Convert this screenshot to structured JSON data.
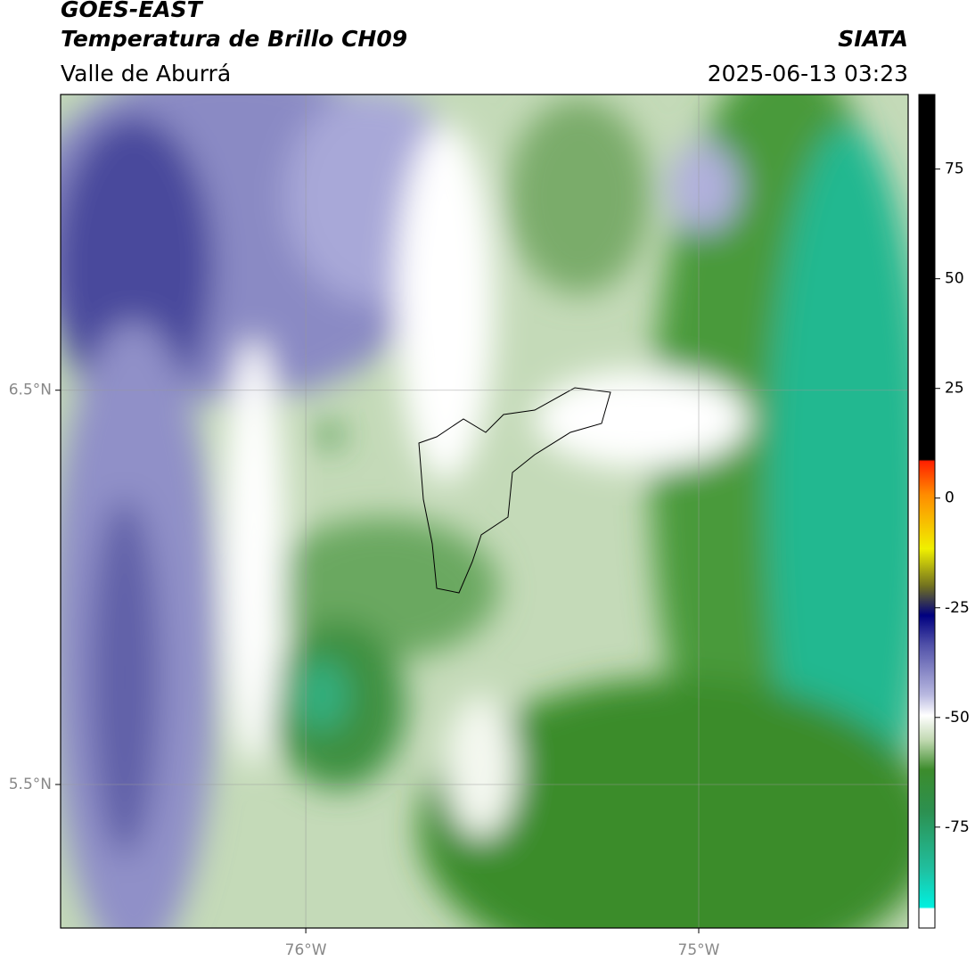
{
  "header": {
    "title": "GOES-EAST",
    "subtitle": "Temperatura de Brillo CH09",
    "region": "Valle de Aburrá",
    "source": "SIATA",
    "timestamp": "2025-06-13 03:23"
  },
  "map": {
    "lat_lim": [
      5.136,
      7.25
    ],
    "lon_lim": [
      -76.624,
      -74.467
    ],
    "lat_ticks": [
      {
        "value": 6.5,
        "label": "6.5°N"
      },
      {
        "value": 5.5,
        "label": "5.5°N"
      }
    ],
    "lon_ticks": [
      {
        "value": -76,
        "label": "76°W"
      },
      {
        "value": -75,
        "label": "75°W"
      }
    ],
    "grid": true
  },
  "colorbar": {
    "lim": [
      -98,
      92
    ],
    "ticks": [
      75,
      50,
      25,
      0,
      -25,
      -50,
      -75
    ]
  }
}
